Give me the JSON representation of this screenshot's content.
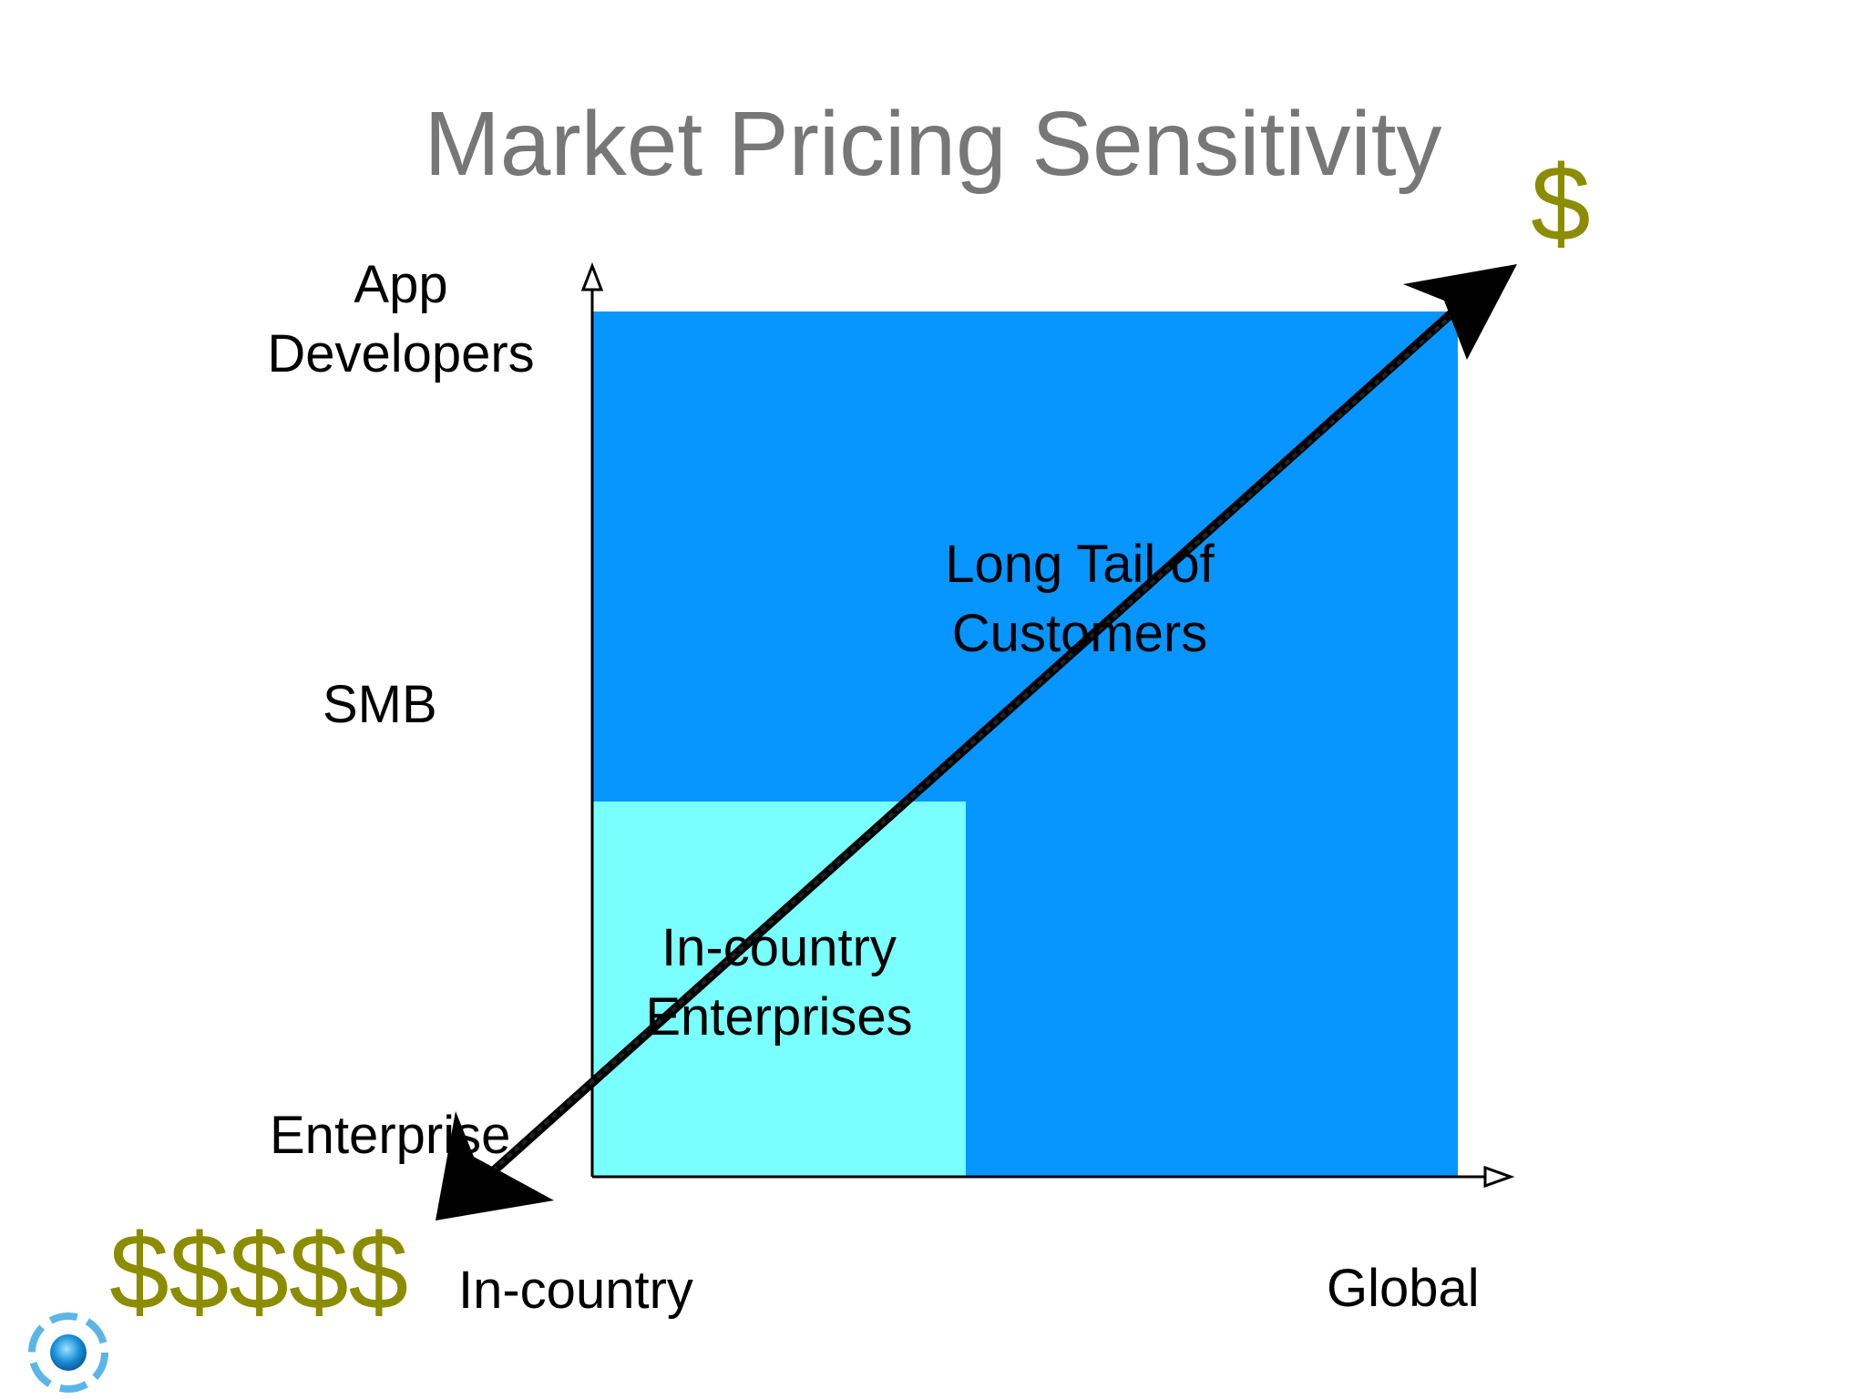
{
  "title": "Market Pricing Sensitivity",
  "y_axis": {
    "labels": {
      "top_line1": "App",
      "top_line2": "Developers",
      "middle": "SMB",
      "bottom": "Enterprise"
    }
  },
  "x_axis": {
    "labels": {
      "left": "In-country",
      "right": "Global"
    }
  },
  "regions": {
    "long_tail": {
      "line1": "Long Tail of",
      "line2": "Customers",
      "color": "#0795ff"
    },
    "in_country_enterprises": {
      "line1": "In-country",
      "line2": "Enterprises",
      "color": "#7affff"
    }
  },
  "price_arrow": {
    "low_end_label": "$",
    "high_end_label": "$$$$$",
    "label_color": "#8c8c00"
  },
  "logo": {
    "icon": "company-logo-icon"
  }
}
